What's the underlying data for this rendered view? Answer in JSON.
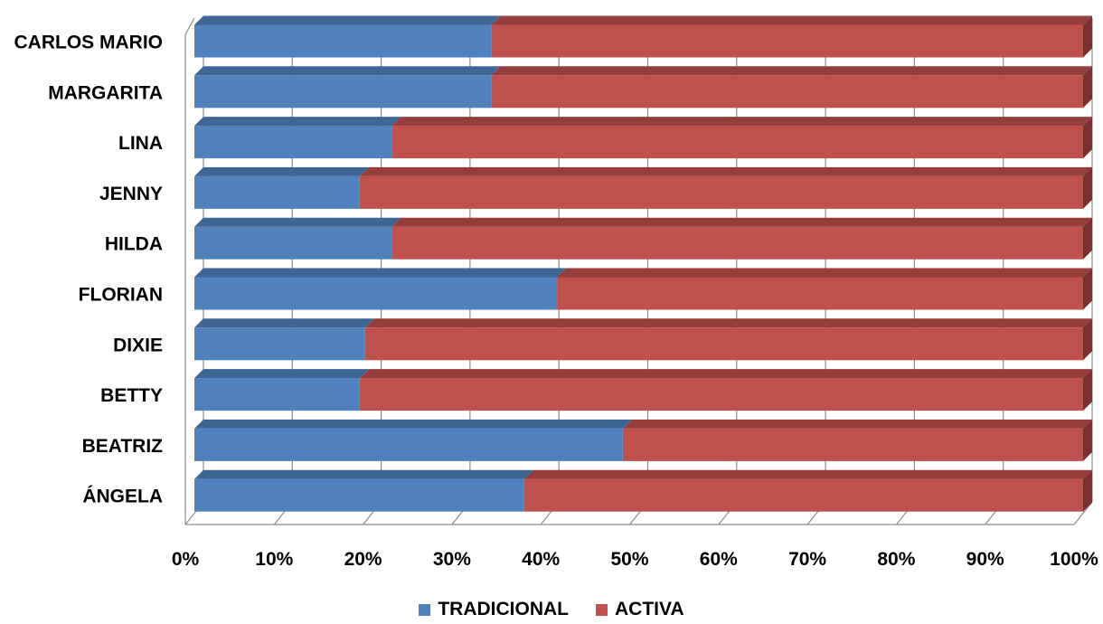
{
  "chart_data": {
    "type": "bar",
    "orientation": "horizontal",
    "stacked": "percent",
    "style": "3d",
    "categories": [
      "CARLOS MARIO",
      "MARGARITA",
      "LINA",
      "JENNY",
      "HILDA",
      "FLORIAN",
      "DIXIE",
      "BETTY",
      "BEATRIZ",
      "ÁNGELA"
    ],
    "series": [
      {
        "name": "TRADICIONAL",
        "color": "#4f81bd",
        "values": [
          33.4,
          33.4,
          22.2,
          18.6,
          22.2,
          40.8,
          19.2,
          18.6,
          48.2,
          37.1
        ]
      },
      {
        "name": "ACTIVA",
        "color": "#c0504d",
        "values": [
          66.6,
          66.6,
          77.8,
          81.4,
          77.8,
          59.2,
          80.8,
          81.4,
          51.8,
          62.9
        ]
      }
    ],
    "xlim": [
      0,
      100
    ],
    "x_ticks": [
      "0%",
      "10%",
      "20%",
      "30%",
      "40%",
      "50%",
      "60%",
      "70%",
      "80%",
      "90%",
      "100%"
    ],
    "grid": true,
    "legend_position": "bottom",
    "title": "",
    "xlabel": "",
    "ylabel": ""
  }
}
